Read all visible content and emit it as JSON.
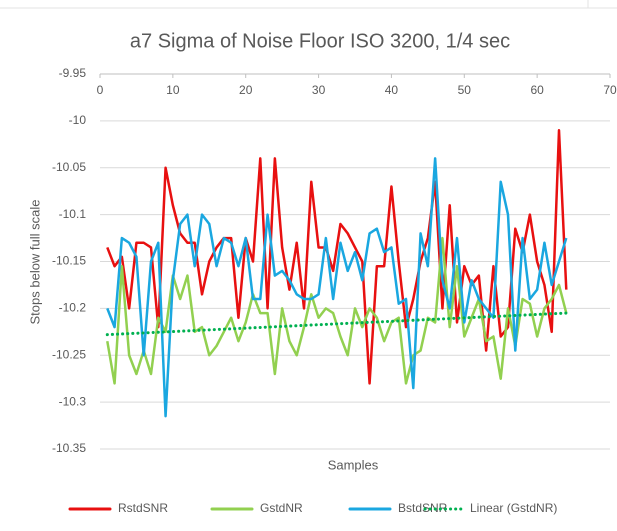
{
  "chart_data": {
    "type": "line",
    "title": "a7 Sigma of Noise Floor ISO 3200, 1/4 sec",
    "xlabel": "Samples",
    "ylabel": "Stops below full scale",
    "x": [
      1,
      2,
      3,
      4,
      5,
      6,
      7,
      8,
      9,
      10,
      11,
      12,
      13,
      14,
      15,
      16,
      17,
      18,
      19,
      20,
      21,
      22,
      23,
      24,
      25,
      26,
      27,
      28,
      29,
      30,
      31,
      32,
      33,
      34,
      35,
      36,
      37,
      38,
      39,
      40,
      41,
      42,
      43,
      44,
      45,
      46,
      47,
      48,
      49,
      50,
      51,
      52,
      53,
      54,
      55,
      56,
      57,
      58,
      59,
      60,
      61,
      62,
      63,
      64
    ],
    "series": [
      {
        "name": "RstdSNR",
        "color": "#e81010",
        "values": [
          -10.135,
          -10.155,
          -10.145,
          -10.2,
          -10.13,
          -10.13,
          -10.135,
          -10.22,
          -10.05,
          -10.09,
          -10.12,
          -10.13,
          -10.13,
          -10.185,
          -10.15,
          -10.135,
          -10.125,
          -10.125,
          -10.21,
          -10.125,
          -10.15,
          -10.04,
          -10.2,
          -10.04,
          -10.135,
          -10.18,
          -10.13,
          -10.2,
          -10.065,
          -10.135,
          -10.135,
          -10.16,
          -10.11,
          -10.12,
          -10.135,
          -10.15,
          -10.28,
          -10.155,
          -10.155,
          -10.07,
          -10.15,
          -10.22,
          -10.19,
          -10.15,
          -10.125,
          -10.065,
          -10.2,
          -10.09,
          -10.215,
          -10.155,
          -10.175,
          -10.165,
          -10.245,
          -10.155,
          -10.23,
          -10.22,
          -10.115,
          -10.14,
          -10.1,
          -10.15,
          -10.175,
          -10.225,
          -10.01,
          -10.18
        ]
      },
      {
        "name": "GstdNR",
        "color": "#92d050",
        "values": [
          -10.235,
          -10.28,
          -10.155,
          -10.25,
          -10.27,
          -10.245,
          -10.27,
          -10.21,
          -10.225,
          -10.165,
          -10.19,
          -10.165,
          -10.225,
          -10.22,
          -10.25,
          -10.24,
          -10.225,
          -10.21,
          -10.235,
          -10.215,
          -10.185,
          -10.205,
          -10.205,
          -10.27,
          -10.2,
          -10.235,
          -10.25,
          -10.22,
          -10.185,
          -10.21,
          -10.2,
          -10.205,
          -10.23,
          -10.25,
          -10.2,
          -10.22,
          -10.2,
          -10.21,
          -10.235,
          -10.215,
          -10.21,
          -10.28,
          -10.25,
          -10.245,
          -10.21,
          -10.215,
          -10.125,
          -10.22,
          -10.155,
          -10.23,
          -10.21,
          -10.19,
          -10.235,
          -10.23,
          -10.275,
          -10.2,
          -10.24,
          -10.19,
          -10.195,
          -10.23,
          -10.2,
          -10.19,
          -10.175,
          -10.205
        ]
      },
      {
        "name": "BstdSNR",
        "color": "#1aa7e0",
        "values": [
          -10.2,
          -10.22,
          -10.125,
          -10.13,
          -10.145,
          -10.25,
          -10.15,
          -10.13,
          -10.315,
          -10.17,
          -10.11,
          -10.1,
          -10.155,
          -10.1,
          -10.11,
          -10.155,
          -10.125,
          -10.13,
          -10.155,
          -10.125,
          -10.19,
          -10.19,
          -10.1,
          -10.165,
          -10.16,
          -10.17,
          -10.185,
          -10.19,
          -10.19,
          -10.185,
          -10.125,
          -10.19,
          -10.13,
          -10.16,
          -10.14,
          -10.17,
          -10.12,
          -10.115,
          -10.14,
          -10.135,
          -10.195,
          -10.19,
          -10.285,
          -10.12,
          -10.155,
          -10.04,
          -10.17,
          -10.2,
          -10.125,
          -10.215,
          -10.17,
          -10.19,
          -10.2,
          -10.21,
          -10.065,
          -10.1,
          -10.245,
          -10.125,
          -10.19,
          -10.18,
          -10.13,
          -10.175,
          -10.15,
          -10.125
        ]
      }
    ],
    "trendline": {
      "name": "Linear (GstdNR)",
      "color": "#00b050",
      "style": "dotted",
      "x": [
        1,
        64
      ],
      "values": [
        -10.228,
        -10.205
      ]
    },
    "xlim": [
      0,
      70
    ],
    "xticks": [
      0,
      10,
      20,
      30,
      40,
      50,
      60,
      70
    ],
    "ylim": [
      -10.35,
      -9.95
    ],
    "yticks": [
      -9.95,
      -10,
      -10.05,
      -10.1,
      -10.15,
      -10.2,
      -10.25,
      -10.3,
      -10.35
    ],
    "grid": true,
    "legend": "bottom"
  }
}
